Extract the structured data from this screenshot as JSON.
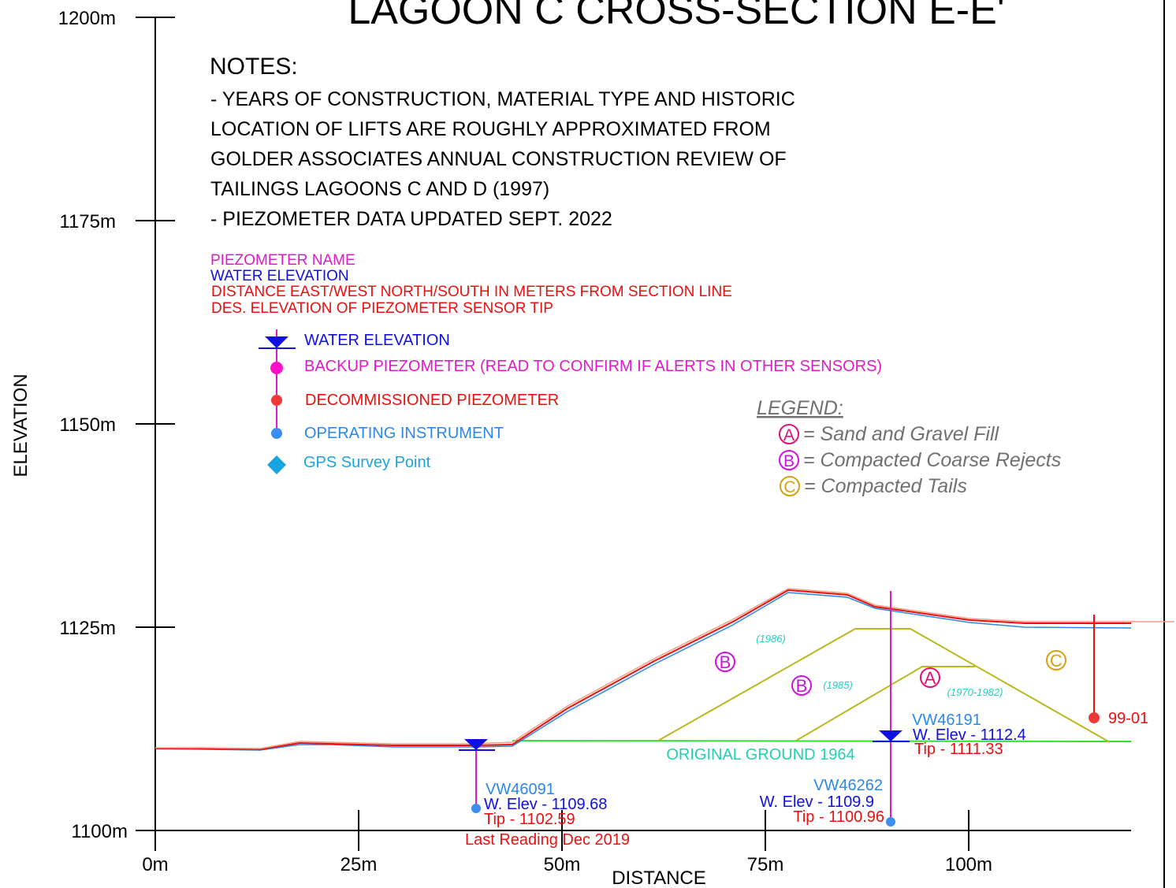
{
  "title": "LAGOON C CROSS-SECTION E-E'",
  "axes": {
    "y_label": "ELEVATION",
    "x_label": "DISTANCE",
    "y_ticks": [
      "1200m",
      "1175m",
      "1150m",
      "1125m",
      "1100m"
    ],
    "x_ticks": [
      "0m",
      "25m",
      "50m",
      "75m",
      "100m"
    ]
  },
  "notes": {
    "heading": "NOTES:",
    "lines": [
      "- YEARS OF CONSTRUCTION, MATERIAL TYPE  AND HISTORIC",
      "LOCATION OF LIFTS ARE ROUGHLY APPROXIMATED FROM",
      "GOLDER ASSOCIATES ANNUAL CONSTRUCTION REVIEW OF",
      "TAILINGS LAGOONS C AND D (1997)",
      "- PIEZOMETER DATA UPDATED SEPT. 2022"
    ]
  },
  "key": [
    "PIEZOMETER NAME",
    "WATER ELEVATION",
    "DISTANCE EAST/WEST NORTH/SOUTH IN METERS FROM SECTION LINE",
    "DES. ELEVATION OF PIEZOMETER SENSOR TIP"
  ],
  "symbols": [
    "WATER ELEVATION",
    "BACKUP PIEZOMETER (READ TO CONFIRM IF ALERTS IN OTHER SENSORS)",
    "DECOMMISSIONED PIEZOMETER",
    "OPERATING INSTRUMENT",
    "GPS Survey Point"
  ],
  "legend": {
    "heading": "LEGEND:",
    "items": [
      {
        "letter": "A",
        "text": "= Sand and Gravel Fill"
      },
      {
        "letter": "B",
        "text": "= Compacted Coarse Rejects"
      },
      {
        "letter": "C",
        "text": "= Compacted Tails"
      }
    ]
  },
  "zones": [
    {
      "letter": "B",
      "year": "(1986)"
    },
    {
      "letter": "B",
      "year": "(1985)"
    },
    {
      "letter": "A",
      "year": "(1970-1982)"
    },
    {
      "letter": "C"
    }
  ],
  "original_ground": "ORIGINAL GROUND 1964",
  "piezometers": [
    {
      "name": "VW46091",
      "water": "W. Elev - 1109.68",
      "tip": "Tip - 1102.59",
      "note": "Last Reading Dec 2019"
    },
    {
      "name": "VW46262",
      "water": "W. Elev - 1109.9",
      "tip": "Tip - 1100.96"
    },
    {
      "name": "VW46191",
      "water": "W. Elev - 1112.4",
      "tip": "Tip - 1111.33"
    },
    {
      "name": "99-01"
    }
  ]
}
